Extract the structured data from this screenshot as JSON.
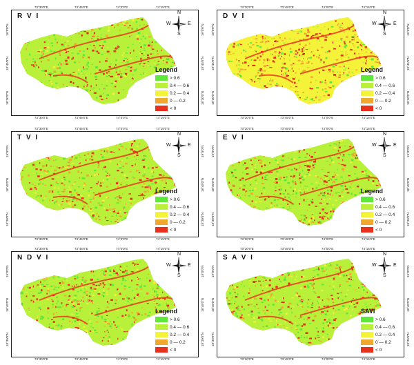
{
  "colors": {
    "gt06": "#5fe83a",
    "r0406": "#b8f03a",
    "r0204": "#f5f23a",
    "r002": "#f0a830",
    "lt0": "#e8301e"
  },
  "compass": {
    "n": "N",
    "s": "S",
    "e": "E",
    "w": "W"
  },
  "panels": [
    {
      "title": "R V I",
      "legend_title": "Legend",
      "ranges": [
        "> 0.6",
        "0.4 — 0.6",
        "0.2 — 0.4",
        "0 — 0.2",
        "< 0"
      ],
      "xticks": [
        "73°30'0\"E",
        "73°45'0\"E",
        "74°0'0\"E",
        "74°15'0\"E"
      ],
      "yticks": [
        "19°0'0\"N",
        "18°45'0\"N",
        "18°30'0\"N"
      ]
    },
    {
      "title": "D V I",
      "legend_title": "Legend",
      "ranges": [
        "> 0.6",
        "0.4 — 0.6",
        "0.2 — 0.4",
        "0 — 0.2",
        "< 0"
      ],
      "xticks": [
        "73°30'0\"E",
        "73°45'0\"E",
        "74°0'0\"E",
        "74°15'0\"E"
      ],
      "yticks": [
        "19°0'0\"N",
        "18°45'0\"N",
        "18°30'0\"N"
      ]
    },
    {
      "title": "T V I",
      "legend_title": "Legend",
      "ranges": [
        "> 0.6",
        "0.4 — 0.6",
        "0.2 — 0.4",
        "0 — 0.2",
        "< 0"
      ],
      "xticks": [
        "73°30'0\"E",
        "73°45'0\"E",
        "74°0'0\"E",
        "74°15'0\"E"
      ],
      "yticks": [
        "19°0'0\"N",
        "18°45'0\"N",
        "18°30'0\"N"
      ]
    },
    {
      "title": "E V I",
      "legend_title": "Legend",
      "ranges": [
        "> 0.6",
        "0.4 — 0.6",
        "0.2 — 0.4",
        "0 — 0.2",
        "< 0"
      ],
      "xticks": [
        "73°30'0\"E",
        "73°45'0\"E",
        "74°0'0\"E",
        "74°15'0\"E"
      ],
      "yticks": [
        "19°0'0\"N",
        "18°45'0\"N",
        "18°30'0\"N"
      ]
    },
    {
      "title": "N D V I",
      "legend_title": "Legend",
      "ranges": [
        "> 0.6",
        "0.4 — 0.6",
        "0.2 — 0.4",
        "0 — 0.2",
        "< 0"
      ],
      "xticks": [
        "73°30'0\"E",
        "73°45'0\"E",
        "74°0'0\"E",
        "74°15'0\"E"
      ],
      "yticks": [
        "19°0'0\"N",
        "18°45'0\"N",
        "18°30'0\"N"
      ]
    },
    {
      "title": "S A V I",
      "legend_title": "SAVI",
      "ranges": [
        "> 0.6",
        "0.4 — 0.6",
        "0.2 — 0.4",
        "0 — 0.2",
        "< 0"
      ],
      "xticks": [
        "73°30'0\"E",
        "73°45'0\"E",
        "74°0'0\"E",
        "74°15'0\"E"
      ],
      "yticks": [
        "19°0'0\"N",
        "18°45'0\"N",
        "18°30'0\"N"
      ]
    }
  ]
}
